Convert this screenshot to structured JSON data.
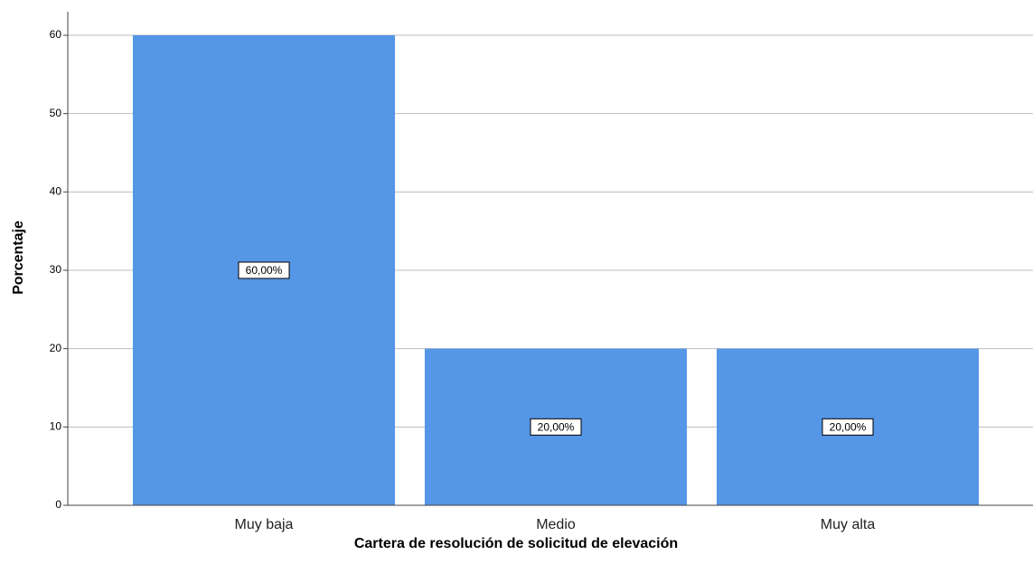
{
  "chart_data": {
    "type": "bar",
    "x_label": "Cartera de resolución de solicitud de elevación",
    "y_label": "Porcentaje",
    "categories": [
      "Muy baja",
      "Medio",
      "Muy alta"
    ],
    "values": [
      60,
      20,
      20
    ],
    "value_labels": [
      "60,00%",
      "20,00%",
      "20,00%"
    ],
    "color": "#5596e6",
    "ylim": [
      0,
      63
    ],
    "yticks": [
      0,
      10,
      20,
      30,
      40,
      50,
      60
    ],
    "grid": true
  }
}
